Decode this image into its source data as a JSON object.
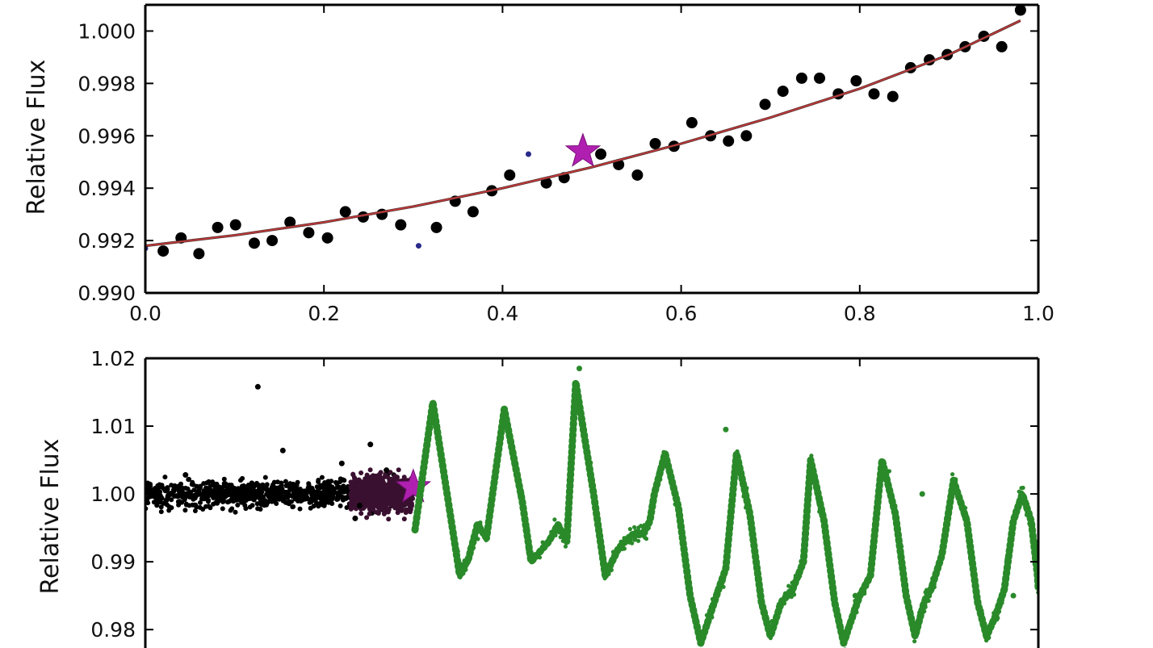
{
  "chart_data": [
    {
      "type": "scatter",
      "title": "",
      "xlabel": "",
      "ylabel": "Relative Flux",
      "xlim": [
        0.0,
        1.0
      ],
      "ylim": [
        0.99,
        1.001
      ],
      "x_ticks": [
        "0.0",
        "0.2",
        "0.4",
        "0.6",
        "0.8",
        "1.0"
      ],
      "x_tick_values": [
        0.0,
        0.2,
        0.4,
        0.6,
        0.8,
        1.0
      ],
      "y_ticks": [
        "0.990",
        "0.992",
        "0.994",
        "0.996",
        "0.998",
        "1.000"
      ],
      "y_tick_values": [
        0.99,
        0.992,
        0.994,
        0.996,
        0.998,
        1.0
      ],
      "grid": false,
      "legend": "none",
      "series": [
        {
          "kind": "points",
          "color": "#000000",
          "points": [
            [
              0.02,
              0.9916
            ],
            [
              0.04,
              0.9921
            ],
            [
              0.06,
              0.9915
            ],
            [
              0.081,
              0.9925
            ],
            [
              0.101,
              0.9926
            ],
            [
              0.122,
              0.9919
            ],
            [
              0.142,
              0.992
            ],
            [
              0.162,
              0.9927
            ],
            [
              0.183,
              0.9923
            ],
            [
              0.204,
              0.9921
            ],
            [
              0.224,
              0.9931
            ],
            [
              0.244,
              0.9929
            ],
            [
              0.265,
              0.993
            ],
            [
              0.286,
              0.9926
            ],
            [
              0.326,
              0.9925
            ],
            [
              0.347,
              0.9935
            ],
            [
              0.367,
              0.9931
            ],
            [
              0.388,
              0.9939
            ],
            [
              0.408,
              0.9945
            ],
            [
              0.449,
              0.9942
            ],
            [
              0.469,
              0.9944
            ],
            [
              0.51,
              0.9953
            ],
            [
              0.53,
              0.9949
            ],
            [
              0.551,
              0.9945
            ],
            [
              0.571,
              0.9957
            ],
            [
              0.592,
              0.9956
            ],
            [
              0.612,
              0.9965
            ],
            [
              0.633,
              0.996
            ],
            [
              0.653,
              0.9958
            ],
            [
              0.673,
              0.996
            ],
            [
              0.694,
              0.9972
            ],
            [
              0.714,
              0.9977
            ],
            [
              0.735,
              0.9982
            ],
            [
              0.755,
              0.9982
            ],
            [
              0.776,
              0.9976
            ],
            [
              0.796,
              0.9981
            ],
            [
              0.816,
              0.9976
            ],
            [
              0.837,
              0.9975
            ],
            [
              0.857,
              0.9986
            ],
            [
              0.878,
              0.9989
            ],
            [
              0.898,
              0.9991
            ],
            [
              0.918,
              0.9994
            ],
            [
              0.939,
              0.9998
            ],
            [
              0.959,
              0.9994
            ],
            [
              0.98,
              1.0008
            ]
          ]
        },
        {
          "kind": "outliers",
          "color": "#2a2a8a",
          "points": [
            [
              0.306,
              0.9918
            ],
            [
              0.429,
              0.9953
            ],
            [
              0.0,
              0.9917
            ]
          ]
        },
        {
          "kind": "fit",
          "color": "#d03a3a",
          "x": [
            0.0,
            0.1,
            0.2,
            0.3,
            0.4,
            0.5,
            0.6,
            0.7,
            0.8,
            0.9,
            0.98
          ],
          "y": [
            0.9918,
            0.9922,
            0.9927,
            0.9933,
            0.994,
            0.9948,
            0.9957,
            0.9967,
            0.9978,
            0.9991,
            1.0004
          ]
        },
        {
          "kind": "star",
          "color": "#b020b0",
          "points": [
            [
              0.49,
              0.9954
            ]
          ]
        }
      ]
    },
    {
      "type": "scatter",
      "title": "",
      "xlabel": "",
      "ylabel": "Relative Flux",
      "xlim": [
        0.0,
        1.0
      ],
      "ylim": [
        0.978,
        1.02
      ],
      "y_ticks": [
        "0.98",
        "0.99",
        "1.00",
        "1.01",
        "1.02"
      ],
      "y_tick_values": [
        0.98,
        0.99,
        1.0,
        1.01,
        1.02
      ],
      "grid": false,
      "legend": "none",
      "series": [
        {
          "kind": "baseline",
          "color": "#000000",
          "x_range": [
            0.0,
            0.29
          ],
          "center": 1.0,
          "scatter": 0.001
        },
        {
          "kind": "baseline",
          "color": "#3a1030",
          "x_range": [
            0.23,
            0.3
          ],
          "center": 1.0,
          "scatter": 0.0012
        },
        {
          "kind": "outliers",
          "color": "#000000",
          "points": [
            [
              0.126,
              1.0158
            ],
            [
              0.154,
              1.0064
            ],
            [
              0.22,
              1.0045
            ],
            [
              0.252,
              1.0073
            ],
            [
              0.13,
              0.9985
            ],
            [
              0.24,
              0.9983
            ],
            [
              0.235,
              0.9964
            ],
            [
              0.045,
              1.0028
            ],
            [
              0.27,
              1.0035
            ],
            [
              0.205,
              1.0018
            ]
          ]
        },
        {
          "kind": "star",
          "color": "#b020b0",
          "points": [
            [
              0.3,
              1.001
            ]
          ]
        },
        {
          "kind": "oscillation",
          "color": "#2a8a2a",
          "points": [
            [
              0.302,
              0.9947
            ],
            [
              0.322,
              1.0135
            ],
            [
              0.342,
              0.9965
            ],
            [
              0.352,
              0.988
            ],
            [
              0.362,
              0.9905
            ],
            [
              0.372,
              0.9955
            ],
            [
              0.382,
              0.9935
            ],
            [
              0.402,
              1.0125
            ],
            [
              0.422,
              0.999
            ],
            [
              0.432,
              0.99
            ],
            [
              0.452,
              0.993
            ],
            [
              0.462,
              0.9955
            ],
            [
              0.472,
              0.993
            ],
            [
              0.482,
              1.0165
            ],
            [
              0.502,
              1.0
            ],
            [
              0.515,
              0.988
            ],
            [
              0.53,
              0.992
            ],
            [
              0.545,
              0.994
            ],
            [
              0.557,
              0.994
            ],
            [
              0.565,
              0.996
            ],
            [
              0.57,
              1.0
            ],
            [
              0.582,
              1.006
            ],
            [
              0.597,
              0.998
            ],
            [
              0.61,
              0.985
            ],
            [
              0.622,
              0.978
            ],
            [
              0.632,
              0.982
            ],
            [
              0.642,
              0.986
            ],
            [
              0.65,
              0.989
            ],
            [
              0.662,
              1.006
            ],
            [
              0.677,
              0.997
            ],
            [
              0.69,
              0.984
            ],
            [
              0.7,
              0.979
            ],
            [
              0.712,
              0.984
            ],
            [
              0.725,
              0.986
            ],
            [
              0.737,
              0.99
            ],
            [
              0.745,
              1.005
            ],
            [
              0.76,
              0.996
            ],
            [
              0.772,
              0.984
            ],
            [
              0.782,
              0.978
            ],
            [
              0.792,
              0.982
            ],
            [
              0.8,
              0.985
            ],
            [
              0.812,
              0.988
            ],
            [
              0.825,
              1.005
            ],
            [
              0.84,
              0.997
            ],
            [
              0.852,
              0.985
            ],
            [
              0.862,
              0.979
            ],
            [
              0.872,
              0.984
            ],
            [
              0.88,
              0.986
            ],
            [
              0.892,
              0.991
            ],
            [
              0.905,
              1.002
            ],
            [
              0.92,
              0.996
            ],
            [
              0.932,
              0.984
            ],
            [
              0.942,
              0.979
            ],
            [
              0.952,
              0.982
            ],
            [
              0.962,
              0.986
            ],
            [
              0.972,
              0.996
            ],
            [
              0.982,
              1.0
            ],
            [
              0.992,
              0.996
            ],
            [
              0.999,
              0.988
            ],
            [
              1.0,
              0.986
            ]
          ]
        },
        {
          "kind": "outliers",
          "color": "#2a8a2a",
          "points": [
            [
              0.65,
              1.0095
            ],
            [
              0.486,
              1.0185
            ],
            [
              0.972,
              0.985
            ],
            [
              0.87,
              1.0
            ],
            [
              0.795,
              0.985
            ]
          ]
        }
      ]
    }
  ]
}
